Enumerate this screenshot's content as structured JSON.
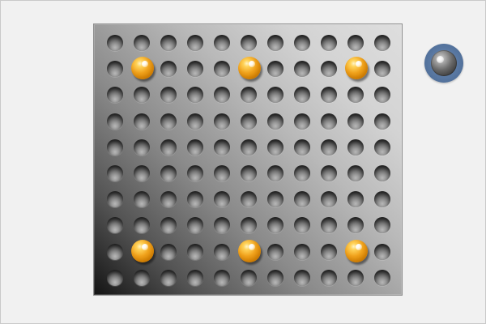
{
  "board": {
    "rows": 10,
    "cols": 11,
    "pegs": [
      {
        "row": 1,
        "col": 1
      },
      {
        "row": 1,
        "col": 5
      },
      {
        "row": 1,
        "col": 9
      },
      {
        "row": 8,
        "col": 1
      },
      {
        "row": 8,
        "col": 5
      },
      {
        "row": 8,
        "col": 9
      }
    ]
  },
  "status_indicator": {
    "icon": "glossy-orb-icon"
  },
  "colors": {
    "page_background": "#f1f1f1",
    "board_dark": "#141414",
    "board_light": "#dedede",
    "peg_orange": "#f0a21c",
    "peg_highlight": "#fff4c7",
    "status_ring": "#5b7aa4"
  }
}
